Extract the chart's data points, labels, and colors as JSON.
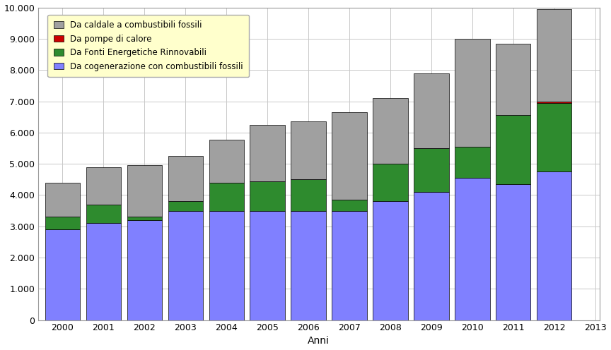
{
  "years": [
    2000,
    2001,
    2002,
    2003,
    2004,
    2005,
    2006,
    2007,
    2008,
    2009,
    2010,
    2011,
    2012
  ],
  "x_tick_years": [
    2000,
    2001,
    2002,
    2003,
    2004,
    2005,
    2006,
    2007,
    2008,
    2009,
    2010,
    2011,
    2012,
    2013
  ],
  "cogenerazione": [
    2900,
    3100,
    3200,
    3500,
    3500,
    3500,
    3500,
    3500,
    3800,
    4100,
    4550,
    4350,
    4750
  ],
  "fonti_rinnovabili": [
    400,
    600,
    100,
    300,
    900,
    950,
    1000,
    350,
    1200,
    1400,
    1000,
    2200,
    2200
  ],
  "pompe_di_calore": [
    0,
    0,
    0,
    0,
    0,
    0,
    0,
    0,
    0,
    0,
    0,
    0,
    50
  ],
  "caldaie_fossili": [
    1100,
    1200,
    1650,
    1450,
    1380,
    1800,
    1850,
    2800,
    2100,
    2400,
    3450,
    2300,
    2950
  ],
  "colors": {
    "caldaie_fossili": "#a0a0a0",
    "pompe_di_calore": "#cc0000",
    "fonti_rinnovabili": "#2e8b2e",
    "cogenerazione": "#8080ff"
  },
  "ylim": [
    0,
    10000
  ],
  "yticks": [
    0,
    1000,
    2000,
    3000,
    4000,
    5000,
    6000,
    7000,
    8000,
    9000,
    10000
  ],
  "xlabel": "Anni",
  "legend_labels": [
    "Da caldale a combustibili fossili",
    "Da pompe di calore",
    "Da Fonti Energetiche Rinnovabili",
    "Da cogenerazione con combustibili fossili"
  ],
  "background_color": "#ffffff",
  "plot_bg_color": "#ffffff",
  "legend_bg_color": "#ffffcc",
  "grid_color": "#c8c8c8",
  "bar_edge_color": "#000000",
  "axis_fontsize": 9,
  "legend_fontsize": 8.5
}
